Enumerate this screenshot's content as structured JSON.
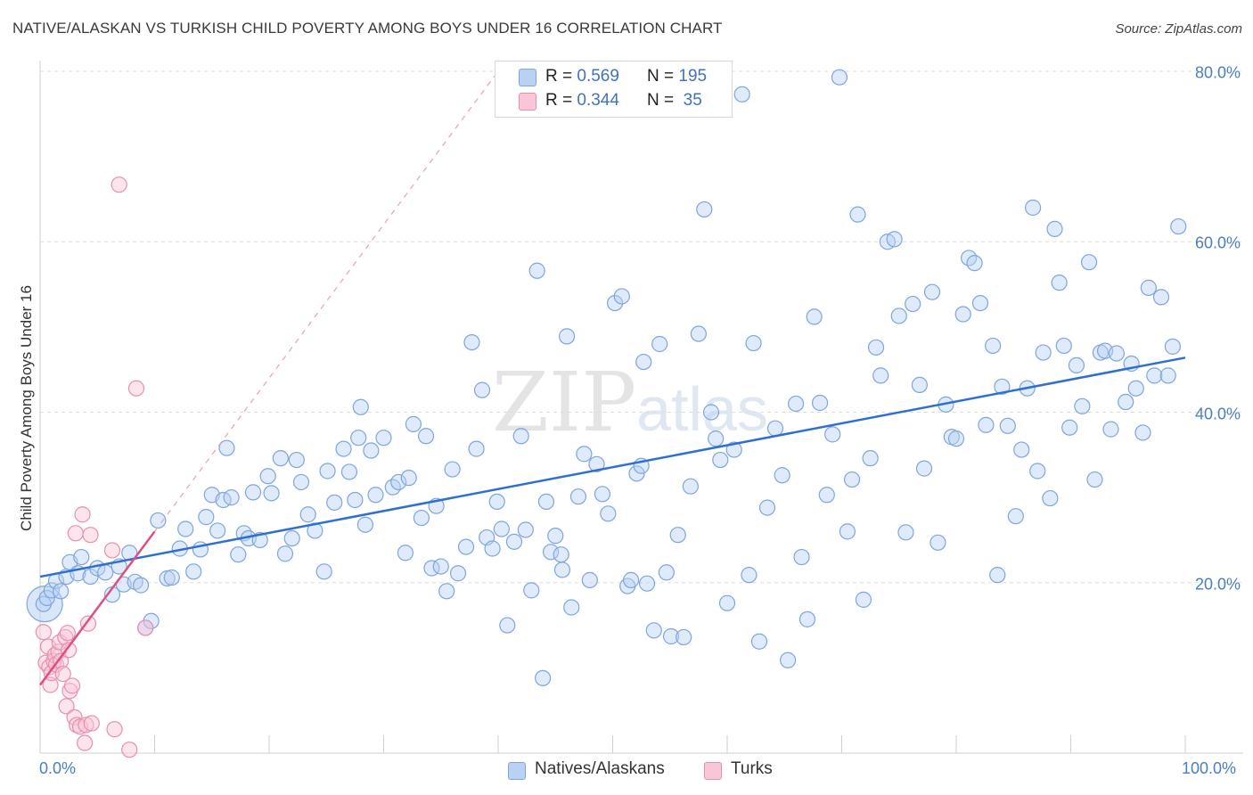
{
  "title": "NATIVE/ALASKAN VS TURKISH CHILD POVERTY AMONG BOYS UNDER 16 CORRELATION CHART",
  "source": "Source: ZipAtlas.com",
  "watermark": {
    "zip": "ZIP",
    "atlas": "atlas"
  },
  "legend": {
    "r_label": "R =",
    "n_label": "N =",
    "series1": {
      "r": "0.569",
      "n": "195"
    },
    "series2": {
      "r": "0.344",
      "n": "35"
    }
  },
  "bottom_legend": {
    "series1": "Natives/Alaskans",
    "series2": "Turks"
  },
  "colors": {
    "natives_fill": "#b9d1f3",
    "natives_stroke": "#7ea6dc",
    "natives_line": "#2f6fd0",
    "turks_fill": "#f8c6d6",
    "turks_stroke": "#e98fac",
    "turks_line": "#e0507f",
    "grid": "#dddddd",
    "tick_text": "#4a7fc1"
  },
  "chart_data": {
    "type": "scatter",
    "title": "NATIVE/ALASKAN VS TURKISH CHILD POVERTY AMONG BOYS UNDER 16 CORRELATION CHART",
    "xlabel": "",
    "ylabel": "Child Poverty Among Boys Under 16",
    "xlim": [
      0,
      100
    ],
    "ylim": [
      0,
      80
    ],
    "x_tick_labels": [
      "0.0%",
      "100.0%"
    ],
    "y_ticks": [
      20,
      40,
      60,
      80
    ],
    "y_tick_labels": [
      "20.0%",
      "40.0%",
      "60.0%",
      "80.0%"
    ],
    "series": [
      {
        "name": "Natives/Alaskans",
        "r": 0.569,
        "n": 195,
        "trend": {
          "x": [
            0,
            100
          ],
          "y": [
            20.7,
            46.4
          ]
        },
        "points": [
          [
            0.3,
            17.5
          ],
          [
            0.6,
            18.2
          ],
          [
            1.0,
            19.1
          ],
          [
            1.4,
            20.2
          ],
          [
            1.8,
            19.0
          ],
          [
            2.3,
            20.7
          ],
          [
            2.6,
            22.4
          ],
          [
            3.3,
            21.1
          ],
          [
            3.6,
            23.0
          ],
          [
            4.4,
            20.7
          ],
          [
            5.0,
            21.7
          ],
          [
            5.7,
            21.2
          ],
          [
            6.3,
            18.6
          ],
          [
            6.9,
            21.9
          ],
          [
            7.3,
            19.8
          ],
          [
            7.8,
            23.5
          ],
          [
            8.3,
            20.1
          ],
          [
            8.8,
            19.7
          ],
          [
            9.2,
            14.7
          ],
          [
            9.7,
            15.5
          ],
          [
            10.3,
            27.3
          ],
          [
            11.1,
            20.5
          ],
          [
            11.5,
            20.6
          ],
          [
            12.2,
            24.0
          ],
          [
            12.7,
            26.3
          ],
          [
            13.4,
            21.3
          ],
          [
            14.0,
            23.9
          ],
          [
            14.5,
            27.7
          ],
          [
            15.0,
            30.3
          ],
          [
            15.5,
            26.1
          ],
          [
            16.0,
            29.7
          ],
          [
            16.3,
            35.8
          ],
          [
            16.7,
            30.0
          ],
          [
            17.3,
            23.3
          ],
          [
            17.8,
            25.8
          ],
          [
            18.2,
            25.2
          ],
          [
            18.6,
            30.6
          ],
          [
            19.2,
            25.0
          ],
          [
            19.9,
            32.5
          ],
          [
            20.2,
            30.5
          ],
          [
            21.0,
            34.6
          ],
          [
            21.4,
            23.4
          ],
          [
            22.0,
            25.2
          ],
          [
            22.4,
            34.4
          ],
          [
            22.8,
            31.8
          ],
          [
            23.4,
            28.0
          ],
          [
            24.0,
            26.1
          ],
          [
            24.8,
            21.3
          ],
          [
            25.1,
            33.1
          ],
          [
            25.7,
            29.4
          ],
          [
            26.5,
            35.7
          ],
          [
            27.0,
            33.0
          ],
          [
            27.5,
            29.7
          ],
          [
            28.0,
            40.6
          ],
          [
            28.4,
            26.8
          ],
          [
            28.9,
            35.5
          ],
          [
            29.3,
            30.3
          ],
          [
            30.0,
            37.0
          ],
          [
            30.8,
            31.2
          ],
          [
            31.3,
            31.8
          ],
          [
            31.9,
            23.5
          ],
          [
            32.2,
            32.3
          ],
          [
            32.6,
            38.6
          ],
          [
            33.3,
            27.6
          ],
          [
            33.7,
            37.2
          ],
          [
            34.2,
            21.7
          ],
          [
            34.6,
            29.0
          ],
          [
            35.0,
            21.9
          ],
          [
            35.5,
            19.0
          ],
          [
            36.0,
            33.3
          ],
          [
            36.5,
            21.1
          ],
          [
            37.2,
            24.2
          ],
          [
            37.7,
            48.2
          ],
          [
            38.1,
            35.7
          ],
          [
            38.6,
            42.6
          ],
          [
            39.0,
            25.3
          ],
          [
            39.5,
            24.0
          ],
          [
            39.9,
            29.5
          ],
          [
            40.3,
            26.3
          ],
          [
            40.8,
            15.0
          ],
          [
            41.4,
            24.8
          ],
          [
            42.0,
            37.2
          ],
          [
            42.4,
            26.2
          ],
          [
            42.9,
            19.1
          ],
          [
            43.4,
            56.6
          ],
          [
            43.9,
            8.8
          ],
          [
            44.2,
            29.5
          ],
          [
            44.6,
            23.6
          ],
          [
            45.0,
            25.5
          ],
          [
            45.6,
            21.5
          ],
          [
            46.0,
            48.9
          ],
          [
            46.4,
            17.1
          ],
          [
            47.0,
            30.1
          ],
          [
            47.5,
            35.1
          ],
          [
            48.0,
            20.3
          ],
          [
            48.6,
            33.9
          ],
          [
            49.1,
            30.4
          ],
          [
            49.6,
            28.1
          ],
          [
            50.2,
            52.8
          ],
          [
            50.8,
            53.6
          ],
          [
            51.3,
            19.6
          ],
          [
            51.6,
            20.3
          ],
          [
            52.1,
            32.8
          ],
          [
            52.7,
            45.9
          ],
          [
            53.0,
            19.9
          ],
          [
            53.6,
            14.4
          ],
          [
            54.1,
            48.0
          ],
          [
            54.7,
            21.2
          ],
          [
            55.1,
            13.7
          ],
          [
            55.7,
            25.6
          ],
          [
            56.2,
            13.6
          ],
          [
            56.8,
            31.3
          ],
          [
            57.5,
            49.2
          ],
          [
            58.0,
            63.8
          ],
          [
            58.6,
            40.0
          ],
          [
            59.0,
            36.9
          ],
          [
            59.4,
            34.4
          ],
          [
            60.0,
            17.6
          ],
          [
            60.6,
            35.6
          ],
          [
            61.3,
            77.3
          ],
          [
            61.9,
            20.9
          ],
          [
            62.3,
            48.1
          ],
          [
            62.8,
            13.1
          ],
          [
            63.5,
            28.8
          ],
          [
            64.2,
            38.1
          ],
          [
            64.8,
            32.6
          ],
          [
            65.3,
            10.9
          ],
          [
            66.0,
            41.0
          ],
          [
            66.5,
            23.0
          ],
          [
            67.0,
            15.7
          ],
          [
            67.6,
            51.2
          ],
          [
            68.1,
            41.1
          ],
          [
            68.7,
            30.3
          ],
          [
            69.2,
            37.4
          ],
          [
            69.8,
            79.3
          ],
          [
            70.5,
            26.0
          ],
          [
            70.9,
            32.1
          ],
          [
            71.4,
            63.2
          ],
          [
            71.9,
            18.0
          ],
          [
            72.5,
            34.6
          ],
          [
            73.0,
            47.6
          ],
          [
            73.4,
            44.3
          ],
          [
            74.0,
            60.0
          ],
          [
            74.6,
            60.3
          ],
          [
            75.0,
            51.3
          ],
          [
            75.6,
            25.9
          ],
          [
            76.2,
            52.7
          ],
          [
            76.8,
            43.2
          ],
          [
            77.2,
            33.4
          ],
          [
            77.9,
            54.1
          ],
          [
            78.4,
            24.7
          ],
          [
            79.1,
            40.9
          ],
          [
            79.6,
            37.1
          ],
          [
            80.0,
            36.9
          ],
          [
            80.6,
            51.5
          ],
          [
            81.1,
            58.1
          ],
          [
            81.6,
            57.5
          ],
          [
            82.1,
            52.8
          ],
          [
            82.6,
            38.5
          ],
          [
            83.2,
            47.8
          ],
          [
            83.6,
            20.9
          ],
          [
            84.0,
            43.0
          ],
          [
            84.5,
            38.4
          ],
          [
            85.2,
            27.8
          ],
          [
            85.7,
            35.6
          ],
          [
            86.2,
            42.8
          ],
          [
            86.7,
            64.0
          ],
          [
            87.1,
            33.1
          ],
          [
            87.6,
            47.0
          ],
          [
            88.2,
            29.9
          ],
          [
            88.6,
            61.5
          ],
          [
            89.0,
            55.2
          ],
          [
            89.4,
            47.8
          ],
          [
            89.9,
            38.2
          ],
          [
            90.5,
            45.5
          ],
          [
            91.0,
            40.7
          ],
          [
            91.6,
            57.6
          ],
          [
            92.1,
            32.1
          ],
          [
            92.6,
            47.0
          ],
          [
            93.0,
            47.2
          ],
          [
            93.5,
            38.0
          ],
          [
            94.0,
            46.9
          ],
          [
            94.8,
            41.2
          ],
          [
            95.3,
            45.7
          ],
          [
            95.7,
            42.8
          ],
          [
            96.3,
            37.6
          ],
          [
            96.8,
            54.6
          ],
          [
            97.3,
            44.3
          ],
          [
            97.9,
            53.5
          ],
          [
            98.5,
            44.3
          ],
          [
            98.9,
            47.7
          ],
          [
            99.4,
            61.8
          ],
          [
            52.5,
            33.7
          ],
          [
            45.5,
            23.3
          ],
          [
            27.8,
            37.0
          ]
        ]
      },
      {
        "name": "Turks",
        "r": 0.344,
        "n": 35,
        "trend": {
          "x": [
            0,
            10
          ],
          "y": [
            8.0,
            26.0
          ]
        },
        "trend_dashed": {
          "x": [
            10,
            40
          ],
          "y": [
            26.0,
            80.0
          ]
        },
        "points": [
          [
            0.3,
            14.2
          ],
          [
            0.5,
            10.6
          ],
          [
            0.7,
            12.5
          ],
          [
            0.8,
            10.1
          ],
          [
            0.9,
            8.0
          ],
          [
            1.0,
            9.4
          ],
          [
            1.2,
            10.8
          ],
          [
            1.3,
            11.5
          ],
          [
            1.4,
            10.4
          ],
          [
            1.6,
            11.9
          ],
          [
            1.7,
            13.0
          ],
          [
            1.8,
            10.8
          ],
          [
            2.0,
            9.3
          ],
          [
            2.2,
            13.6
          ],
          [
            2.3,
            5.5
          ],
          [
            2.4,
            14.1
          ],
          [
            2.5,
            12.1
          ],
          [
            2.6,
            7.3
          ],
          [
            2.8,
            7.9
          ],
          [
            3.0,
            4.2
          ],
          [
            3.1,
            25.8
          ],
          [
            3.2,
            3.3
          ],
          [
            3.5,
            3.1
          ],
          [
            3.7,
            28.0
          ],
          [
            3.9,
            1.2
          ],
          [
            4.0,
            3.3
          ],
          [
            4.2,
            15.2
          ],
          [
            4.4,
            25.6
          ],
          [
            4.5,
            3.5
          ],
          [
            6.3,
            23.8
          ],
          [
            6.5,
            2.8
          ],
          [
            6.9,
            66.7
          ],
          [
            7.8,
            0.4
          ],
          [
            8.4,
            42.8
          ],
          [
            9.2,
            14.7
          ]
        ]
      }
    ]
  }
}
